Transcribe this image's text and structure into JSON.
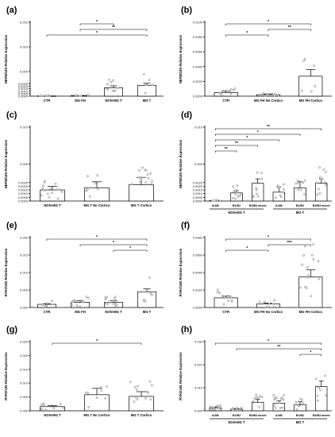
{
  "chart_data": [
    {
      "panel": "(a)",
      "type": "bar",
      "ylabel": "NEFM/18S Relative Expression",
      "categories": [
        "CTR",
        "MG FH",
        "NON-MG T",
        "MG T"
      ],
      "values": [
        5e-05,
        0.0001,
        0.0017,
        0.0022
      ],
      "errors": [
        2e-05,
        3e-05,
        0.0004,
        0.0004
      ],
      "ylim": [
        0,
        0.015
      ],
      "yticks": [
        0,
        0.0005,
        0.001,
        0.0015,
        0.002,
        0.0025,
        0.005,
        0.01,
        0.015
      ],
      "ytick_labels": [
        "0.0000",
        "0.0005",
        "0.0010",
        "0.0015",
        "0.0020",
        "0.0025",
        "0.005",
        "0.010",
        "0.015"
      ],
      "sig": [
        {
          "from": 0,
          "to": 3,
          "label": "*"
        },
        {
          "from": 1,
          "to": 3,
          "label": "**"
        },
        {
          "from": 1,
          "to": 2,
          "label": "*"
        }
      ]
    },
    {
      "panel": "(b)",
      "type": "bar",
      "ylabel": "NEFM/18S Relative Expression",
      "categories": [
        "CTR",
        "MG FH No Cortico",
        "MG FH Cortico"
      ],
      "values": [
        0.0005,
        0.0002,
        0.0027
      ],
      "errors": [
        0.0002,
        0.0001,
        0.0009
      ],
      "ylim": [
        0,
        0.01
      ],
      "yticks": [
        0,
        0.002,
        0.004,
        0.006,
        0.008,
        0.01
      ],
      "ytick_labels": [
        "0.0000",
        "0.0020",
        "0.0040",
        "0.0060",
        "0.0080",
        "0.0100"
      ],
      "sig": [
        {
          "from": 0,
          "to": 1,
          "label": "*"
        },
        {
          "from": 1,
          "to": 2,
          "label": "**"
        },
        {
          "from": 0,
          "to": 2,
          "label": "*"
        }
      ]
    },
    {
      "panel": "(c)",
      "type": "bar",
      "ylabel": "NEFM/18S Relative Expression",
      "categories": [
        "NON-MG T",
        "MG T No Cortico",
        "MG T Cortico"
      ],
      "values": [
        0.0015,
        0.0018,
        0.0022
      ],
      "errors": [
        0.0005,
        0.0008,
        0.001
      ],
      "ylim": [
        0,
        0.01
      ],
      "yticks": [
        0,
        0.0005,
        0.001,
        0.0015,
        0.002,
        0.0025,
        0.005,
        0.01
      ],
      "ytick_labels": [
        "0.0000",
        "0.0005",
        "0.0010",
        "0.0015",
        "0.0020",
        "0.0025",
        "0.005",
        "0.010"
      ],
      "sig": []
    },
    {
      "panel": "(d)",
      "type": "bar",
      "ylabel": "NEFM/18S Relative Expression",
      "categories": [
        "A/AB",
        "B1/B2",
        "B3/B3 mixed",
        "A/AB",
        "B1/B2",
        "B3/B3 mixed"
      ],
      "groups": [
        {
          "label": "NON-MG T",
          "from": 0,
          "to": 2
        },
        {
          "label": "MG T",
          "from": 3,
          "to": 5
        }
      ],
      "values": [
        5e-05,
        0.0011,
        0.0024,
        0.0012,
        0.0018,
        0.0024
      ],
      "errors": [
        2e-05,
        0.0003,
        0.0006,
        0.0007,
        0.0008,
        0.0006
      ],
      "ylim": [
        0,
        0.01
      ],
      "yticks": [
        0,
        0.0005,
        0.001,
        0.0015,
        0.002,
        0.0025,
        0.005,
        0.01
      ],
      "ytick_labels": [
        "0.0000",
        "0.0005",
        "0.0010",
        "0.0015",
        "0.0020",
        "0.0025",
        "0.005",
        "0.010"
      ],
      "sig": [
        {
          "from": 0,
          "to": 1,
          "label": "**"
        },
        {
          "from": 0,
          "to": 2,
          "label": "**"
        },
        {
          "from": 0,
          "to": 3,
          "label": "*"
        },
        {
          "from": 0,
          "to": 4,
          "label": "*"
        },
        {
          "from": 0,
          "to": 5,
          "label": "**"
        }
      ]
    },
    {
      "panel": "(e)",
      "type": "bar",
      "ylabel": "RYR3/18S Relative Expression",
      "categories": [
        "CTR",
        "MG FH",
        "NON-MG T",
        "MG T"
      ],
      "values": [
        0.0009,
        0.0015,
        0.0015,
        0.0045
      ],
      "errors": [
        0.0002,
        0.0004,
        0.0004,
        0.0008
      ],
      "ylim": [
        0,
        0.02
      ],
      "yticks": [
        0,
        0.005,
        0.01,
        0.015,
        0.02
      ],
      "ytick_labels": [
        "0.000",
        "0.005",
        "0.010",
        "0.015",
        "0.020"
      ],
      "sig": [
        {
          "from": 2,
          "to": 3,
          "label": "*"
        },
        {
          "from": 1,
          "to": 3,
          "label": "*"
        },
        {
          "from": 0,
          "to": 3,
          "label": "*"
        }
      ]
    },
    {
      "panel": "(f)",
      "type": "bar",
      "ylabel": "RYR3/18S Relative Expression",
      "categories": [
        "CTR",
        "MG FH No Cortico",
        "MG FH Cortico"
      ],
      "values": [
        0.0011,
        0.0004,
        0.0035
      ],
      "errors": [
        0.0002,
        0.0001,
        0.0008
      ],
      "ylim": [
        0,
        0.008
      ],
      "yticks": [
        0,
        0.002,
        0.004,
        0.006,
        0.008
      ],
      "ytick_labels": [
        "0.0000",
        "0.0020",
        "0.0040",
        "0.0060",
        "0.0080"
      ],
      "sig": [
        {
          "from": 0,
          "to": 1,
          "label": "*"
        },
        {
          "from": 1,
          "to": 2,
          "label": "***"
        },
        {
          "from": 0,
          "to": 2,
          "label": "*"
        }
      ]
    },
    {
      "panel": "(g)",
      "type": "bar",
      "ylabel": "RYR3/18S Relative Expression",
      "categories": [
        "NON-MG T",
        "MG T No Cortico",
        "MG T Cortico"
      ],
      "values": [
        0.0015,
        0.0058,
        0.0052
      ],
      "errors": [
        0.0004,
        0.0023,
        0.0017
      ],
      "ylim": [
        0,
        0.025
      ],
      "yticks": [
        0,
        0.005,
        0.01,
        0.015,
        0.02,
        0.025
      ],
      "ytick_labels": [
        "0.000",
        "0.005",
        "0.010",
        "0.015",
        "0.020",
        "0.025"
      ],
      "sig": [
        {
          "from": 0,
          "to": 2,
          "label": "*"
        }
      ]
    },
    {
      "panel": "(h)",
      "type": "bar",
      "ylabel": "RYR3/18S Relative Expression",
      "categories": [
        "A/AB",
        "B1/B2",
        "B3/B3 mixed",
        "A/AB",
        "B1/B2",
        "B3/B3 mixed"
      ],
      "groups": [
        {
          "label": "NON-MG T",
          "from": 0,
          "to": 2
        },
        {
          "label": "MG T",
          "from": 3,
          "to": 5
        }
      ],
      "values": [
        0.0013,
        0.0007,
        0.0037,
        0.0033,
        0.0027,
        0.0105
      ],
      "errors": [
        0.0004,
        0.0002,
        0.0012,
        0.001,
        0.0012,
        0.0025
      ],
      "ylim": [
        0,
        0.03
      ],
      "yticks": [
        0,
        0.01,
        0.02,
        0.03
      ],
      "ytick_labels": [
        "0.000",
        "0.010",
        "0.020",
        "0.030"
      ],
      "sig": [
        {
          "from": 4,
          "to": 5,
          "label": "*"
        },
        {
          "from": 1,
          "to": 5,
          "label": "**"
        },
        {
          "from": 0,
          "to": 5,
          "label": "*"
        }
      ]
    }
  ]
}
